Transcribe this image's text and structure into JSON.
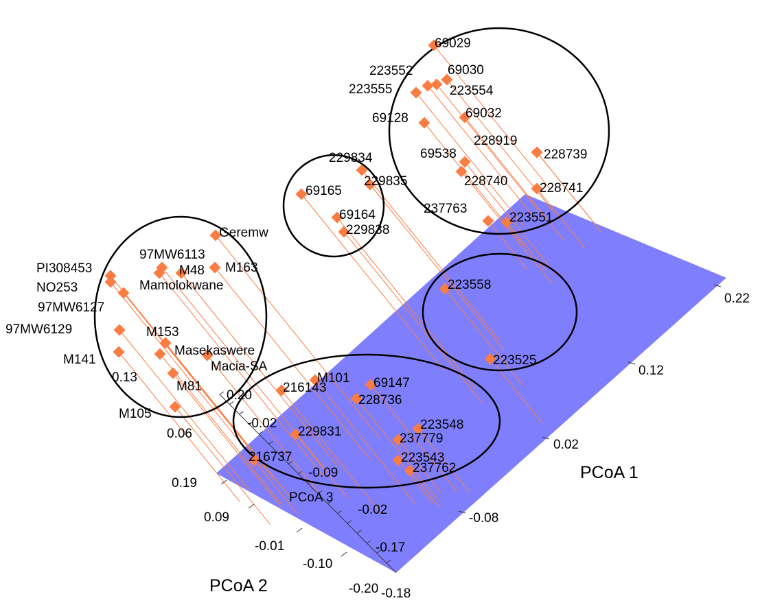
{
  "chart_data": {
    "type": "scatter",
    "projection": "3d",
    "title": "",
    "plane_color": "#7f7ffd",
    "marker_color": "#f97c43",
    "drop_line_color": "#f97c43",
    "axes": {
      "x": {
        "label": "PCoA 1",
        "ticks": [
          "0.22",
          "0.12",
          "0.02",
          "-0.08",
          "-0.18"
        ]
      },
      "y": {
        "label": "PCoA 2",
        "ticks": [
          "0.19",
          "0.09",
          "-0.01",
          "-0.10",
          "-0.20"
        ]
      },
      "z": {
        "label": "PCoA 3",
        "ticks": [
          "0.13",
          "0.20",
          "0.06",
          "-0.02",
          "-0.09",
          "-0.02",
          "-0.17"
        ]
      }
    },
    "points": [
      {
        "label": "69029"
      },
      {
        "label": "69030"
      },
      {
        "label": "223552"
      },
      {
        "label": "223555"
      },
      {
        "label": "223554"
      },
      {
        "label": "69128"
      },
      {
        "label": "69032"
      },
      {
        "label": "228919"
      },
      {
        "label": "228739"
      },
      {
        "label": "69538"
      },
      {
        "label": "228740"
      },
      {
        "label": "228741"
      },
      {
        "label": "237763"
      },
      {
        "label": "223551"
      },
      {
        "label": "229834"
      },
      {
        "label": "229835"
      },
      {
        "label": "69165"
      },
      {
        "label": "69164"
      },
      {
        "label": "229838"
      },
      {
        "label": "Geremw"
      },
      {
        "label": "97MW6113"
      },
      {
        "label": "M48"
      },
      {
        "label": "M163"
      },
      {
        "label": "Mamolokwane"
      },
      {
        "label": "PI308453"
      },
      {
        "label": "NO253"
      },
      {
        "label": "97MW6127"
      },
      {
        "label": "97MW6129"
      },
      {
        "label": "M153"
      },
      {
        "label": "Masekaswere"
      },
      {
        "label": "M141"
      },
      {
        "label": "Macia-SA"
      },
      {
        "label": "M81"
      },
      {
        "label": "M105"
      },
      {
        "label": "223558"
      },
      {
        "label": "223525"
      },
      {
        "label": "216143"
      },
      {
        "label": "M101"
      },
      {
        "label": "69147"
      },
      {
        "label": "228736"
      },
      {
        "label": "229831"
      },
      {
        "label": "223548"
      },
      {
        "label": "237779"
      },
      {
        "label": "223543"
      },
      {
        "label": "237762"
      },
      {
        "label": "216737"
      }
    ]
  }
}
